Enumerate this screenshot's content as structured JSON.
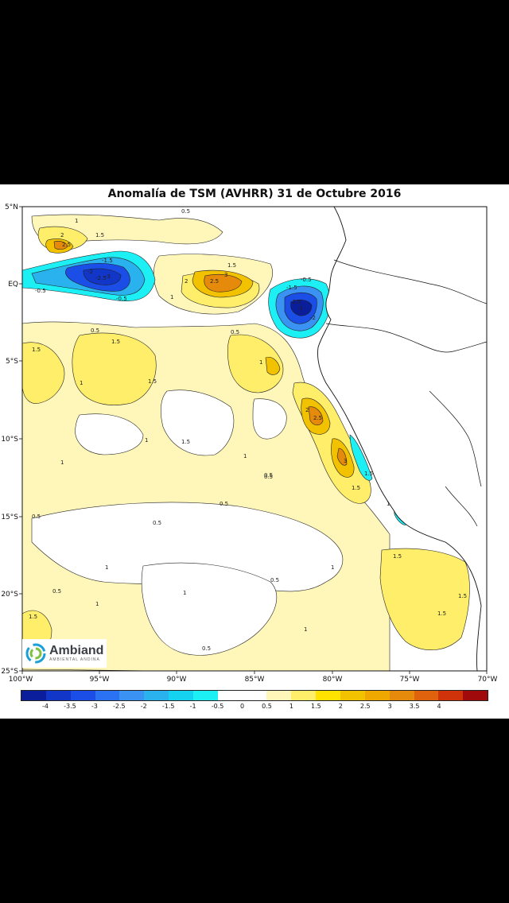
{
  "figure": {
    "title": "Anomalía de TSM (AVHRR) 31 de Octubre 2016"
  },
  "axes": {
    "x_labels": [
      "100°W",
      "95°W",
      "90°W",
      "85°W",
      "80°W",
      "75°W",
      "70°W"
    ],
    "y_labels": [
      "5°N",
      "EQ",
      "5°S",
      "10°S",
      "15°S",
      "20°S",
      "25°S"
    ]
  },
  "colorbar": {
    "colors": [
      "#0a1e9c",
      "#1236c8",
      "#1a4ee6",
      "#2a72f2",
      "#3a92f2",
      "#2ab2ee",
      "#14d2f0",
      "#1cf0f4",
      "#ffffff",
      "#ffffff",
      "#fff6ba",
      "#ffee6a",
      "#ffe200",
      "#f2c200",
      "#eea800",
      "#e68a0c",
      "#e0620c",
      "#d0320a",
      "#a00a0a"
    ],
    "tick_labels": [
      "-4",
      "-3.5",
      "-3",
      "-2.5",
      "-2",
      "-1.5",
      "-1",
      "-0.5",
      "0",
      "0.5",
      "1",
      "1.5",
      "2",
      "2.5",
      "3",
      "3.5",
      "4"
    ]
  },
  "contour_labels": {
    "cold": [
      "-0.5",
      "-1.5",
      "-2",
      "-2.5",
      "-3",
      "-0.5",
      "-1.5",
      "-2.5",
      "-3",
      "-2",
      "-0.5"
    ],
    "warm": [
      "0.5",
      "1",
      "1.5",
      "2",
      "2.5",
      "3",
      "1.5",
      "2",
      "2.5",
      "1",
      "1.5",
      "0.5",
      "1",
      "1.5",
      "2",
      "2.5",
      "3",
      "1",
      "0.5",
      "1.5",
      "1.5",
      "1",
      "0.5",
      "1",
      "1.5",
      "0.5",
      "1",
      "0.5",
      "1.5",
      "1",
      "0.5",
      "1",
      "1.5",
      "0.5",
      "1",
      "0.5",
      "1",
      "1.5",
      "1.5",
      "0.5",
      "1",
      "1.5",
      "1",
      "0.5"
    ]
  },
  "logo": {
    "name": "Ambiand",
    "subtitle": "AMBIENTAL ANDINA"
  }
}
